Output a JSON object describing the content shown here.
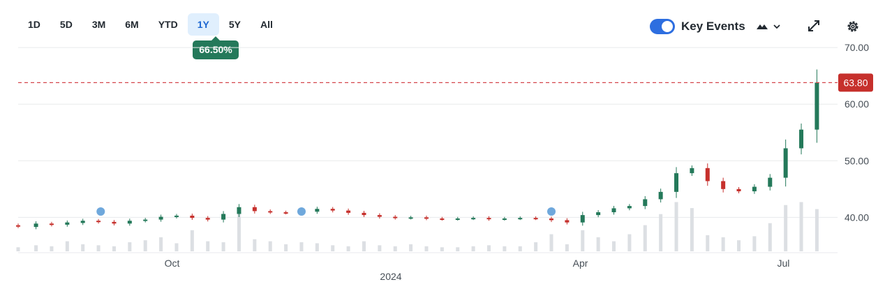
{
  "range_tabs": [
    {
      "label": "1D",
      "active": false
    },
    {
      "label": "5D",
      "active": false
    },
    {
      "label": "3M",
      "active": false
    },
    {
      "label": "6M",
      "active": false
    },
    {
      "label": "YTD",
      "active": false
    },
    {
      "label": "1Y",
      "active": true
    },
    {
      "label": "5Y",
      "active": false
    },
    {
      "label": "All",
      "active": false
    }
  ],
  "period_change": "66.50%",
  "key_events": {
    "label": "Key Events",
    "enabled": true
  },
  "icons": {
    "chart_type": "mountain-chart-icon",
    "expand": "expand-icon",
    "settings": "gear-icon"
  },
  "colors": {
    "up": "#24795a",
    "down": "#c6302c",
    "accent": "#1d67d1",
    "volume": "#dcdfe3",
    "price_line": "#d4464b",
    "event_marker": "#6fa8dc"
  },
  "chart_data": {
    "type": "candlestick",
    "title": "",
    "xlabel": "2024",
    "ylabel": "",
    "x_tick_labels": [
      "Oct",
      "Apr",
      "Jul"
    ],
    "x_tick_dates": [
      "2023-10-01",
      "2024-04-01",
      "2024-07-01"
    ],
    "y_ticks": [
      "40.00",
      "50.00",
      "60.00",
      "70.00"
    ],
    "ylim": [
      34,
      71
    ],
    "x_range": [
      "2023-07-24",
      "2024-07-19"
    ],
    "current_price": 63.8,
    "current_price_label": "63.80",
    "grid": true,
    "key_event_dates": [
      "2023-08-30",
      "2023-11-28",
      "2024-03-19"
    ],
    "series": [
      {
        "values": [
          [
            "2023-07-24",
            38.6,
            38.4
          ],
          [
            "2023-08-01",
            38.3,
            38.9
          ],
          [
            "2023-08-08",
            38.9,
            38.7
          ],
          [
            "2023-08-15",
            38.7,
            39.1
          ],
          [
            "2023-08-22",
            39.0,
            39.4
          ],
          [
            "2023-08-29",
            39.4,
            39.2
          ],
          [
            "2023-09-05",
            39.2,
            38.9
          ],
          [
            "2023-09-12",
            38.9,
            39.4
          ],
          [
            "2023-09-19",
            39.4,
            39.6
          ],
          [
            "2023-09-26",
            39.6,
            40.1
          ],
          [
            "2023-10-03",
            40.1,
            40.3
          ],
          [
            "2023-10-10",
            40.3,
            39.9
          ],
          [
            "2023-10-17",
            39.9,
            39.6
          ],
          [
            "2023-10-24",
            39.6,
            40.6
          ],
          [
            "2023-10-31",
            40.6,
            41.8
          ],
          [
            "2023-11-07",
            41.8,
            41.1
          ],
          [
            "2023-11-14",
            41.1,
            40.9
          ],
          [
            "2023-11-21",
            40.9,
            40.8
          ],
          [
            "2023-11-28",
            40.8,
            41.0
          ],
          [
            "2023-12-05",
            41.0,
            41.5
          ],
          [
            "2023-12-12",
            41.5,
            41.2
          ],
          [
            "2023-12-19",
            41.2,
            40.8
          ],
          [
            "2023-12-26",
            40.8,
            40.4
          ],
          [
            "2024-01-02",
            40.4,
            40.1
          ],
          [
            "2024-01-09",
            40.1,
            39.9
          ],
          [
            "2024-01-16",
            39.9,
            40.0
          ],
          [
            "2024-01-23",
            40.0,
            39.8
          ],
          [
            "2024-01-30",
            39.8,
            39.7
          ],
          [
            "2024-02-06",
            39.7,
            39.8
          ],
          [
            "2024-02-13",
            39.8,
            39.9
          ],
          [
            "2024-02-20",
            39.9,
            39.7
          ],
          [
            "2024-02-27",
            39.7,
            39.8
          ],
          [
            "2024-03-05",
            39.8,
            39.9
          ],
          [
            "2024-03-12",
            39.9,
            39.8
          ],
          [
            "2024-03-19",
            39.8,
            39.5
          ],
          [
            "2024-03-26",
            39.5,
            39.1
          ],
          [
            "2024-04-02",
            39.1,
            40.4
          ],
          [
            "2024-04-09",
            40.4,
            40.9
          ],
          [
            "2024-04-16",
            40.9,
            41.6
          ],
          [
            "2024-04-23",
            41.6,
            42.0
          ],
          [
            "2024-04-30",
            42.0,
            43.2
          ],
          [
            "2024-05-07",
            43.2,
            44.5
          ],
          [
            "2024-05-14",
            44.5,
            47.8
          ],
          [
            "2024-05-21",
            47.8,
            48.7
          ],
          [
            "2024-05-28",
            48.7,
            46.4
          ],
          [
            "2024-06-04",
            46.4,
            45.0
          ],
          [
            "2024-06-11",
            45.0,
            44.6
          ],
          [
            "2024-06-18",
            44.6,
            45.4
          ],
          [
            "2024-06-25",
            45.4,
            47.0
          ],
          [
            "2024-07-02",
            47.0,
            52.2
          ],
          [
            "2024-07-09",
            52.2,
            55.5
          ],
          [
            "2024-07-16",
            55.5,
            63.8
          ]
        ]
      }
    ],
    "volume_relative": [
      0.08,
      0.12,
      0.1,
      0.2,
      0.14,
      0.12,
      0.1,
      0.18,
      0.22,
      0.28,
      0.16,
      0.42,
      0.2,
      0.18,
      0.74,
      0.24,
      0.2,
      0.14,
      0.18,
      0.16,
      0.12,
      0.1,
      0.2,
      0.12,
      0.1,
      0.14,
      0.1,
      0.08,
      0.08,
      0.1,
      0.12,
      0.1,
      0.1,
      0.18,
      0.34,
      0.14,
      0.42,
      0.28,
      0.2,
      0.34,
      0.52,
      0.74,
      0.98,
      0.86,
      0.32,
      0.28,
      0.22,
      0.3,
      0.56,
      0.92,
      0.98,
      0.84
    ]
  }
}
